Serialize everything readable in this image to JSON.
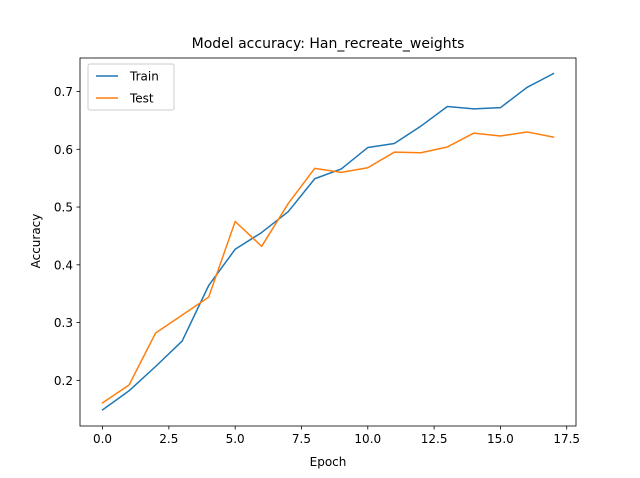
{
  "chart_data": {
    "type": "line",
    "title": "Model accuracy: Han_recreate_weights",
    "xlabel": "Epoch",
    "ylabel": "Accuracy",
    "x": [
      0,
      1,
      2,
      3,
      4,
      5,
      6,
      7,
      8,
      9,
      10,
      11,
      12,
      13,
      14,
      15,
      16,
      17
    ],
    "xlim": [
      -0.85,
      17.85
    ],
    "ylim": [
      0.121,
      0.758
    ],
    "xticks": [
      0.0,
      2.5,
      5.0,
      7.5,
      10.0,
      12.5,
      15.0,
      17.5
    ],
    "xtick_labels": [
      "0.0",
      "2.5",
      "5.0",
      "7.5",
      "10.0",
      "12.5",
      "15.0",
      "17.5"
    ],
    "yticks": [
      0.2,
      0.3,
      0.4,
      0.5,
      0.6,
      0.7
    ],
    "ytick_labels": [
      "0.2",
      "0.3",
      "0.4",
      "0.5",
      "0.6",
      "0.7"
    ],
    "grid": false,
    "legend": {
      "placement": "top-left"
    },
    "series": [
      {
        "name": "Train",
        "color": "#1f77b4",
        "values": [
          0.149,
          0.182,
          0.224,
          0.268,
          0.364,
          0.427,
          0.456,
          0.492,
          0.549,
          0.566,
          0.603,
          0.61,
          0.64,
          0.674,
          0.67,
          0.672,
          0.707,
          0.731
        ]
      },
      {
        "name": "Test",
        "color": "#ff7f0e",
        "values": [
          0.161,
          0.192,
          0.282,
          0.313,
          0.344,
          0.475,
          0.432,
          0.506,
          0.567,
          0.56,
          0.568,
          0.595,
          0.594,
          0.604,
          0.628,
          0.623,
          0.63,
          0.621
        ]
      }
    ]
  }
}
